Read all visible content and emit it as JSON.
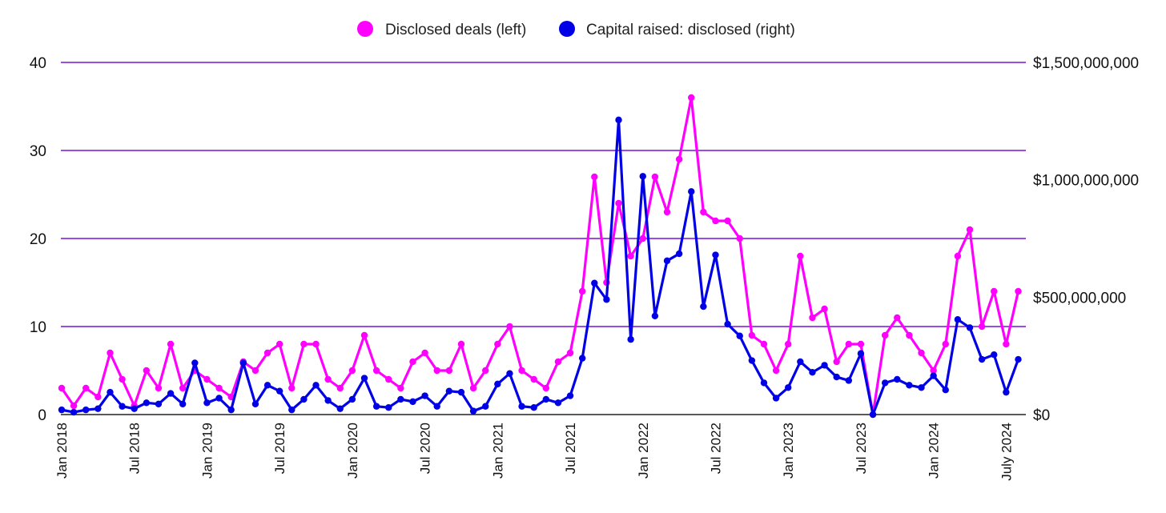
{
  "chart_data": {
    "type": "line",
    "x_first": "Jan 2018",
    "x_last": "Jul 2024",
    "x_tick_labels": [
      "Jan 2018",
      "Jul 2018",
      "Jan 2019",
      "Jul 2019",
      "Jan 2020",
      "Jul 2020",
      "Jan 2021",
      "Jul 2021",
      "Jan 2022",
      "Jul 2022",
      "Jan 2023",
      "Jul 2023",
      "Jan 2024",
      "July 2024"
    ],
    "x_tick_month_index": [
      0,
      6,
      12,
      18,
      24,
      30,
      36,
      42,
      48,
      54,
      60,
      66,
      72,
      78
    ],
    "y_left": {
      "range": [
        0,
        40
      ],
      "ticks": [
        0,
        10,
        20,
        30,
        40
      ],
      "tick_labels": [
        "0",
        "10",
        "20",
        "30",
        "40"
      ]
    },
    "y_right": {
      "range": [
        0,
        1500000000
      ],
      "ticks": [
        0,
        500000000,
        1000000000,
        1500000000
      ],
      "tick_labels": [
        "$0",
        "$500,000,000",
        "$1,000,000,000",
        "$1,500,000,000"
      ]
    },
    "grid": true,
    "legend_position": "top-center",
    "series": [
      {
        "name": "Disclosed deals (left)",
        "axis": "left",
        "color": "#ff00ff",
        "values": [
          3,
          1,
          3,
          2,
          7,
          4,
          1,
          5,
          3,
          8,
          3,
          5,
          4,
          3,
          2,
          6,
          5,
          7,
          8,
          3,
          8,
          8,
          4,
          3,
          5,
          9,
          5,
          4,
          3,
          6,
          7,
          5,
          5,
          8,
          3,
          5,
          8,
          10,
          5,
          4,
          3,
          6,
          7,
          14,
          27,
          15,
          24,
          18,
          20,
          27,
          23,
          29,
          36,
          23,
          22,
          22,
          20,
          9,
          8,
          5,
          8,
          18,
          11,
          12,
          6,
          8,
          8,
          0,
          9,
          11,
          9,
          7,
          5,
          8,
          18,
          21,
          10,
          14,
          8,
          14
        ]
      },
      {
        "name": "Capital raised: disclosed (right)",
        "axis": "right",
        "color": "#0000e6",
        "values": [
          20000000,
          10000000,
          20000000,
          25000000,
          95000000,
          35000000,
          25000000,
          50000000,
          45000000,
          90000000,
          45000000,
          220000000,
          50000000,
          70000000,
          20000000,
          220000000,
          45000000,
          125000000,
          100000000,
          20000000,
          65000000,
          125000000,
          60000000,
          25000000,
          65000000,
          155000000,
          35000000,
          30000000,
          65000000,
          55000000,
          80000000,
          35000000,
          100000000,
          95000000,
          15000000,
          35000000,
          130000000,
          175000000,
          35000000,
          30000000,
          65000000,
          50000000,
          80000000,
          240000000,
          560000000,
          490000000,
          1255000000,
          320000000,
          1015000000,
          420000000,
          655000000,
          685000000,
          950000000,
          460000000,
          680000000,
          385000000,
          335000000,
          230000000,
          135000000,
          70000000,
          115000000,
          225000000,
          180000000,
          210000000,
          160000000,
          145000000,
          260000000,
          0,
          135000000,
          150000000,
          125000000,
          115000000,
          165000000,
          105000000,
          405000000,
          370000000,
          235000000,
          255000000,
          95000000,
          235000000
        ]
      }
    ]
  }
}
